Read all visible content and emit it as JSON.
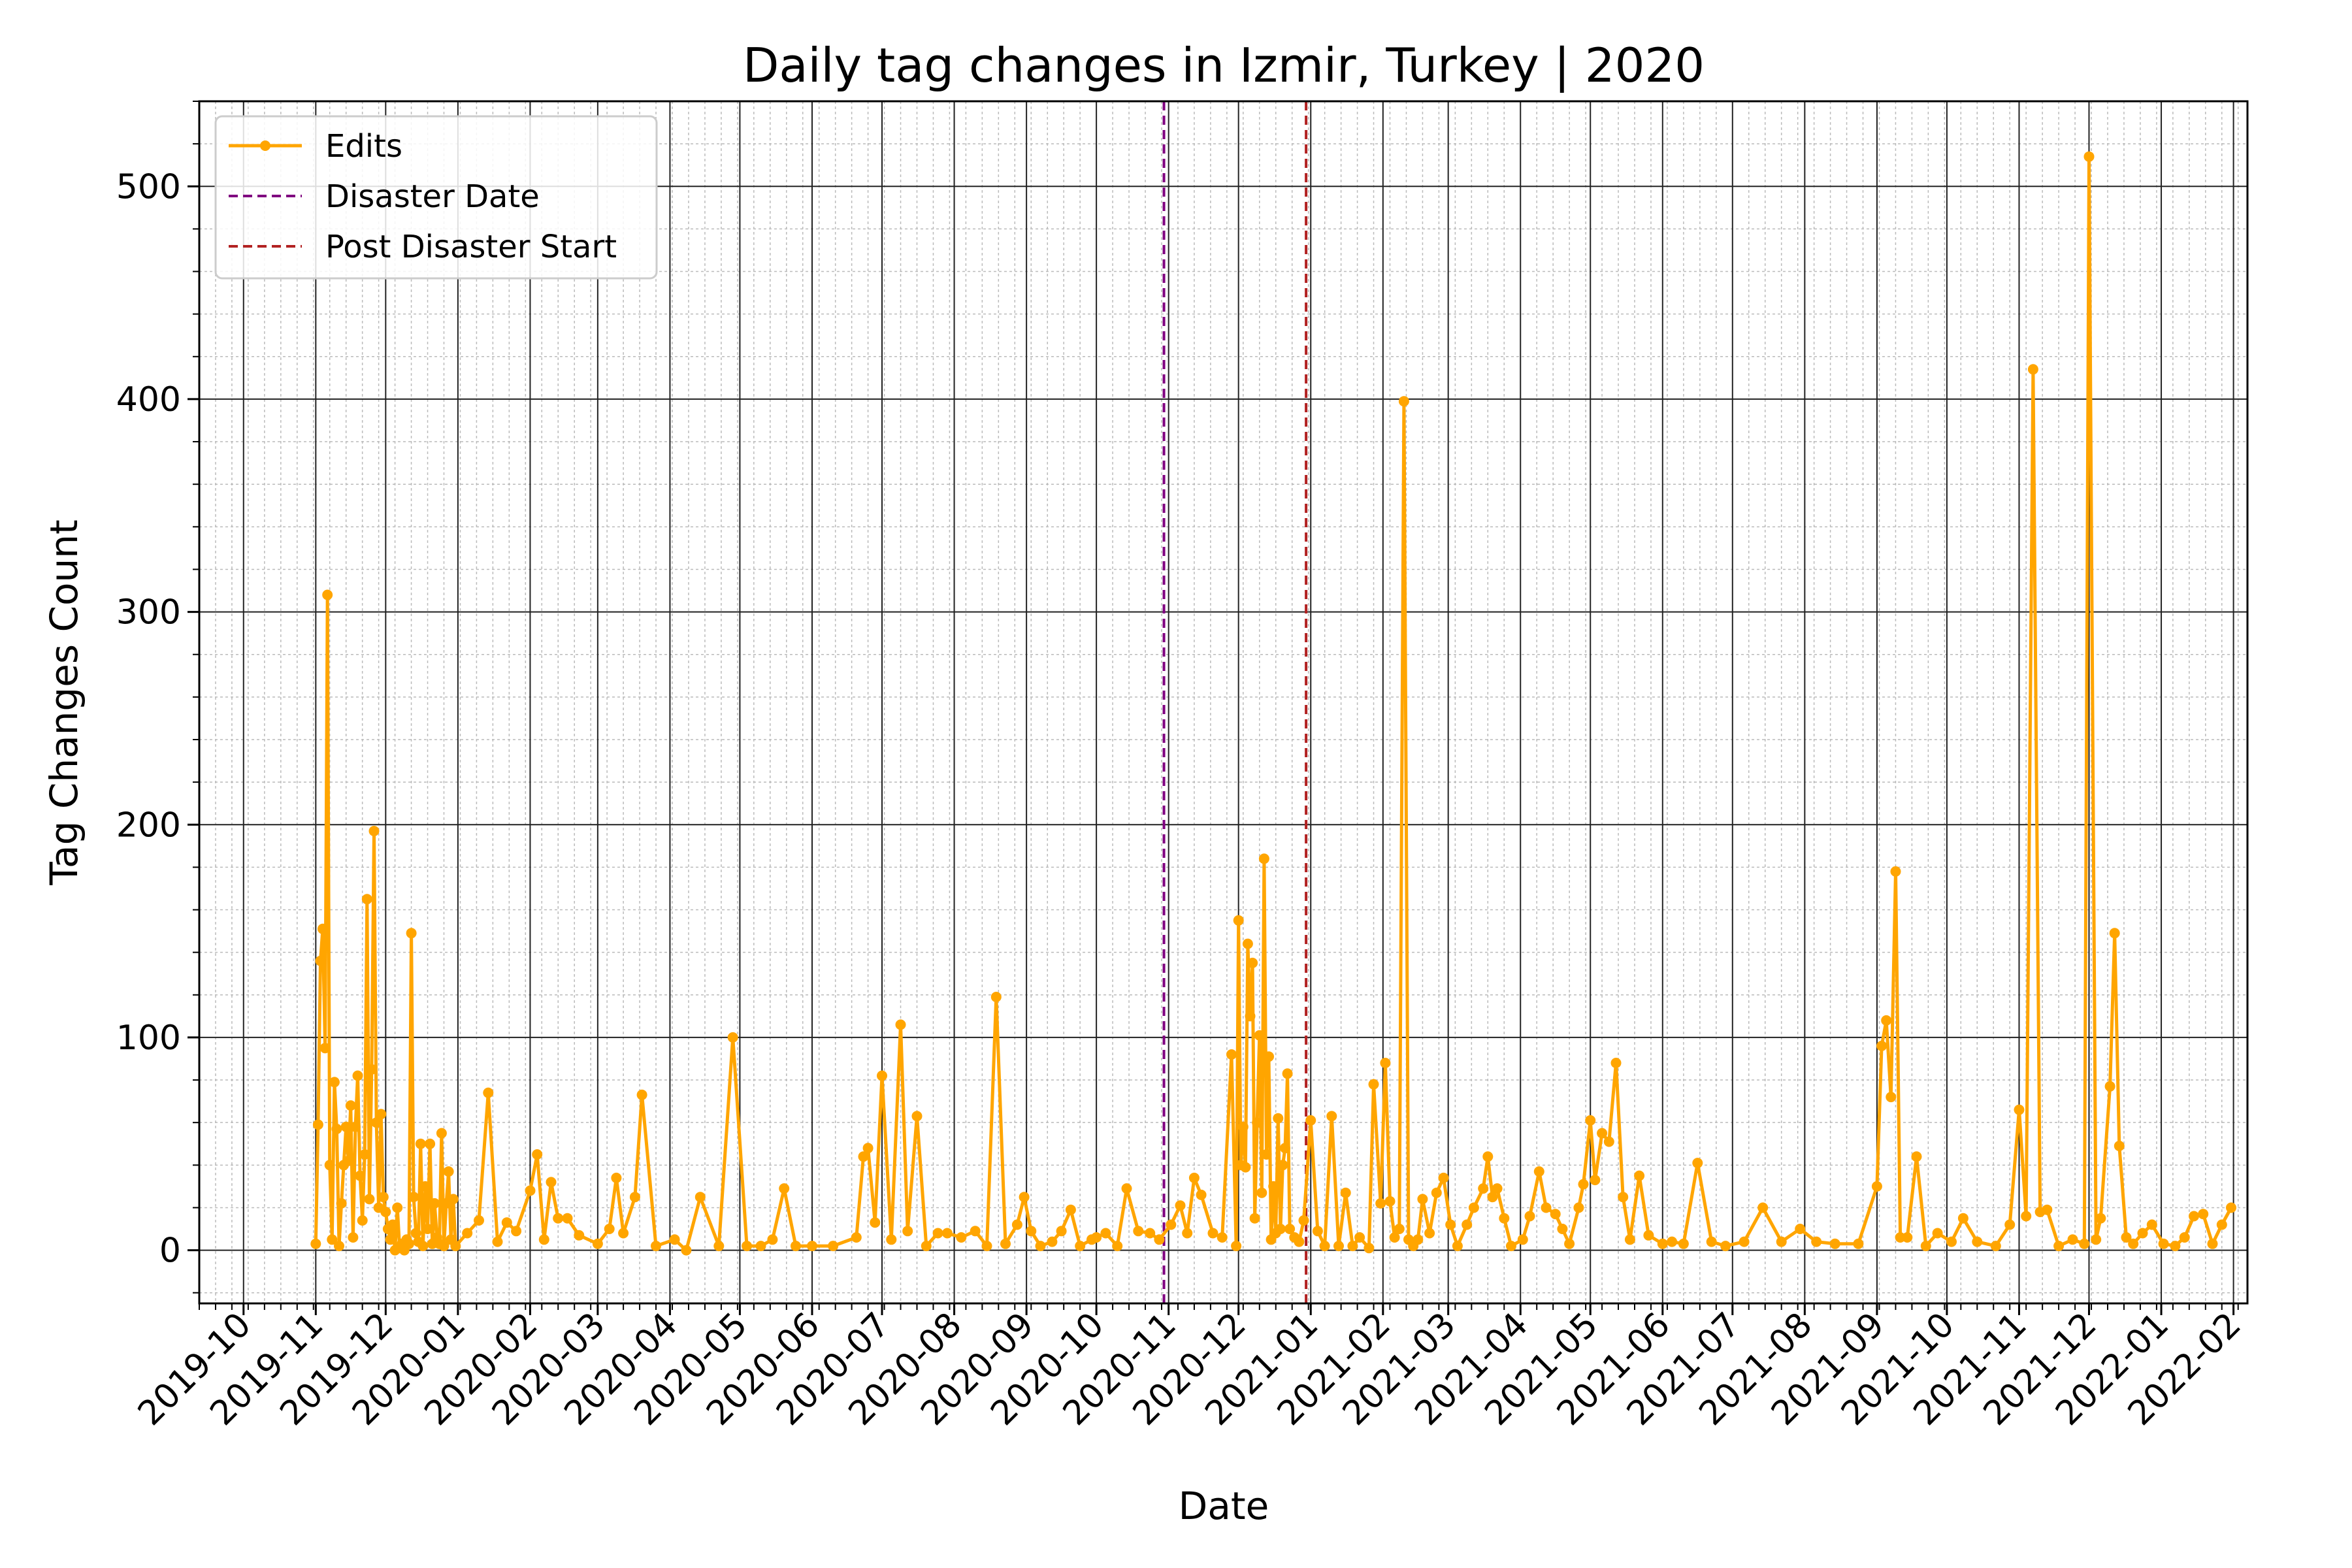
{
  "chart_data": {
    "type": "line",
    "title": "Daily tag changes in Izmir, Turkey | 2020",
    "xlabel": "Date",
    "ylabel": "Tag Changes Count",
    "xlim": [
      "2019-09-12",
      "2022-02-07"
    ],
    "ylim": [
      -25,
      540
    ],
    "y_ticks": [
      0,
      100,
      200,
      300,
      400,
      500
    ],
    "x_ticks": [
      "2019-10",
      "2019-11",
      "2019-12",
      "2020-01",
      "2020-02",
      "2020-03",
      "2020-04",
      "2020-05",
      "2020-06",
      "2020-07",
      "2020-08",
      "2020-09",
      "2020-10",
      "2020-11",
      "2020-12",
      "2021-01",
      "2021-02",
      "2021-03",
      "2021-04",
      "2021-05",
      "2021-06",
      "2021-07",
      "2021-08",
      "2021-09",
      "2021-10",
      "2021-11",
      "2021-12",
      "2022-01",
      "2022-02"
    ],
    "grid": true,
    "legend_position": "upper-left",
    "series": [
      {
        "name": "Edits",
        "color": "#FFA500",
        "marker": "circle",
        "points": [
          [
            "2019-11-01",
            3
          ],
          [
            "2019-11-02",
            59
          ],
          [
            "2019-11-03",
            136
          ],
          [
            "2019-11-04",
            151
          ],
          [
            "2019-11-05",
            95
          ],
          [
            "2019-11-06",
            308
          ],
          [
            "2019-11-07",
            40
          ],
          [
            "2019-11-08",
            5
          ],
          [
            "2019-11-09",
            79
          ],
          [
            "2019-11-10",
            57
          ],
          [
            "2019-11-11",
            2
          ],
          [
            "2019-11-12",
            22
          ],
          [
            "2019-11-13",
            40
          ],
          [
            "2019-11-14",
            58
          ],
          [
            "2019-11-15",
            42
          ],
          [
            "2019-11-16",
            68
          ],
          [
            "2019-11-17",
            6
          ],
          [
            "2019-11-18",
            58
          ],
          [
            "2019-11-19",
            82
          ],
          [
            "2019-11-20",
            35
          ],
          [
            "2019-11-21",
            14
          ],
          [
            "2019-11-22",
            45
          ],
          [
            "2019-11-23",
            165
          ],
          [
            "2019-11-24",
            24
          ],
          [
            "2019-11-25",
            85
          ],
          [
            "2019-11-26",
            197
          ],
          [
            "2019-11-27",
            60
          ],
          [
            "2019-11-28",
            20
          ],
          [
            "2019-11-29",
            64
          ],
          [
            "2019-11-30",
            25
          ],
          [
            "2019-12-01",
            18
          ],
          [
            "2019-12-02",
            10
          ],
          [
            "2019-12-03",
            5
          ],
          [
            "2019-12-04",
            12
          ],
          [
            "2019-12-05",
            0
          ],
          [
            "2019-12-06",
            20
          ],
          [
            "2019-12-07",
            1
          ],
          [
            "2019-12-08",
            3
          ],
          [
            "2019-12-09",
            0
          ],
          [
            "2019-12-10",
            5
          ],
          [
            "2019-12-11",
            3
          ],
          [
            "2019-12-12",
            149
          ],
          [
            "2019-12-13",
            25
          ],
          [
            "2019-12-14",
            8
          ],
          [
            "2019-12-15",
            4
          ],
          [
            "2019-12-16",
            50
          ],
          [
            "2019-12-17",
            2
          ],
          [
            "2019-12-18",
            30
          ],
          [
            "2019-12-19",
            10
          ],
          [
            "2019-12-20",
            50
          ],
          [
            "2019-12-21",
            3
          ],
          [
            "2019-12-22",
            22
          ],
          [
            "2019-12-23",
            6
          ],
          [
            "2019-12-24",
            3
          ],
          [
            "2019-12-25",
            55
          ],
          [
            "2019-12-26",
            2
          ],
          [
            "2019-12-27",
            22
          ],
          [
            "2019-12-28",
            37
          ],
          [
            "2019-12-29",
            5
          ],
          [
            "2019-12-30",
            24
          ],
          [
            "2019-12-31",
            2
          ],
          [
            "2020-01-05",
            8
          ],
          [
            "2020-01-10",
            14
          ],
          [
            "2020-01-14",
            74
          ],
          [
            "2020-01-18",
            4
          ],
          [
            "2020-01-22",
            13
          ],
          [
            "2020-01-26",
            9
          ],
          [
            "2020-02-01",
            28
          ],
          [
            "2020-02-04",
            45
          ],
          [
            "2020-02-07",
            5
          ],
          [
            "2020-02-10",
            32
          ],
          [
            "2020-02-13",
            15
          ],
          [
            "2020-02-17",
            15
          ],
          [
            "2020-02-22",
            7
          ],
          [
            "2020-03-01",
            3
          ],
          [
            "2020-03-06",
            10
          ],
          [
            "2020-03-09",
            34
          ],
          [
            "2020-03-12",
            8
          ],
          [
            "2020-03-17",
            25
          ],
          [
            "2020-03-20",
            73
          ],
          [
            "2020-03-26",
            2
          ],
          [
            "2020-04-03",
            5
          ],
          [
            "2020-04-08",
            0
          ],
          [
            "2020-04-14",
            25
          ],
          [
            "2020-04-22",
            2
          ],
          [
            "2020-04-28",
            100
          ],
          [
            "2020-05-04",
            2
          ],
          [
            "2020-05-10",
            2
          ],
          [
            "2020-05-15",
            5
          ],
          [
            "2020-05-20",
            29
          ],
          [
            "2020-05-25",
            2
          ],
          [
            "2020-06-01",
            2
          ],
          [
            "2020-06-10",
            2
          ],
          [
            "2020-06-20",
            6
          ],
          [
            "2020-06-23",
            44
          ],
          [
            "2020-06-25",
            48
          ],
          [
            "2020-06-28",
            13
          ],
          [
            "2020-07-01",
            82
          ],
          [
            "2020-07-05",
            5
          ],
          [
            "2020-07-09",
            106
          ],
          [
            "2020-07-12",
            9
          ],
          [
            "2020-07-16",
            63
          ],
          [
            "2020-07-20",
            2
          ],
          [
            "2020-07-25",
            8
          ],
          [
            "2020-07-29",
            8
          ],
          [
            "2020-08-04",
            6
          ],
          [
            "2020-08-10",
            9
          ],
          [
            "2020-08-15",
            2
          ],
          [
            "2020-08-19",
            119
          ],
          [
            "2020-08-23",
            3
          ],
          [
            "2020-08-28",
            12
          ],
          [
            "2020-08-31",
            25
          ],
          [
            "2020-09-03",
            9
          ],
          [
            "2020-09-07",
            2
          ],
          [
            "2020-09-12",
            4
          ],
          [
            "2020-09-16",
            9
          ],
          [
            "2020-09-20",
            19
          ],
          [
            "2020-09-24",
            2
          ],
          [
            "2020-09-29",
            5
          ],
          [
            "2020-10-01",
            6
          ],
          [
            "2020-10-05",
            8
          ],
          [
            "2020-10-10",
            2
          ],
          [
            "2020-10-14",
            29
          ],
          [
            "2020-10-19",
            9
          ],
          [
            "2020-10-24",
            8
          ],
          [
            "2020-10-28",
            5
          ],
          [
            "2020-11-02",
            12
          ],
          [
            "2020-11-06",
            21
          ],
          [
            "2020-11-09",
            8
          ],
          [
            "2020-11-12",
            34
          ],
          [
            "2020-11-15",
            26
          ],
          [
            "2020-11-20",
            8
          ],
          [
            "2020-11-24",
            6
          ],
          [
            "2020-11-28",
            92
          ],
          [
            "2020-11-30",
            2
          ],
          [
            "2020-12-01",
            155
          ],
          [
            "2020-12-02",
            40
          ],
          [
            "2020-12-03",
            58
          ],
          [
            "2020-12-04",
            39
          ],
          [
            "2020-12-05",
            144
          ],
          [
            "2020-12-06",
            110
          ],
          [
            "2020-12-07",
            135
          ],
          [
            "2020-12-08",
            15
          ],
          [
            "2020-12-09",
            60
          ],
          [
            "2020-12-10",
            101
          ],
          [
            "2020-12-11",
            27
          ],
          [
            "2020-12-12",
            184
          ],
          [
            "2020-12-13",
            45
          ],
          [
            "2020-12-14",
            91
          ],
          [
            "2020-12-15",
            5
          ],
          [
            "2020-12-16",
            30
          ],
          [
            "2020-12-17",
            8
          ],
          [
            "2020-12-18",
            62
          ],
          [
            "2020-12-19",
            10
          ],
          [
            "2020-12-20",
            40
          ],
          [
            "2020-12-21",
            48
          ],
          [
            "2020-12-22",
            83
          ],
          [
            "2020-12-23",
            10
          ],
          [
            "2020-12-25",
            6
          ],
          [
            "2020-12-27",
            4
          ],
          [
            "2020-12-29",
            14
          ],
          [
            "2021-01-01",
            61
          ],
          [
            "2021-01-04",
            9
          ],
          [
            "2021-01-07",
            2
          ],
          [
            "2021-01-10",
            63
          ],
          [
            "2021-01-13",
            2
          ],
          [
            "2021-01-16",
            27
          ],
          [
            "2021-01-19",
            2
          ],
          [
            "2021-01-22",
            6
          ],
          [
            "2021-01-26",
            1
          ],
          [
            "2021-01-28",
            78
          ],
          [
            "2021-01-31",
            22
          ],
          [
            "2021-02-02",
            88
          ],
          [
            "2021-02-04",
            23
          ],
          [
            "2021-02-06",
            6
          ],
          [
            "2021-02-08",
            10
          ],
          [
            "2021-02-10",
            399
          ],
          [
            "2021-02-12",
            5
          ],
          [
            "2021-02-14",
            2
          ],
          [
            "2021-02-16",
            5
          ],
          [
            "2021-02-18",
            24
          ],
          [
            "2021-02-21",
            8
          ],
          [
            "2021-02-24",
            27
          ],
          [
            "2021-02-27",
            34
          ],
          [
            "2021-03-02",
            12
          ],
          [
            "2021-03-05",
            2
          ],
          [
            "2021-03-09",
            12
          ],
          [
            "2021-03-12",
            20
          ],
          [
            "2021-03-16",
            29
          ],
          [
            "2021-03-18",
            44
          ],
          [
            "2021-03-20",
            25
          ],
          [
            "2021-03-22",
            29
          ],
          [
            "2021-03-25",
            15
          ],
          [
            "2021-03-28",
            2
          ],
          [
            "2021-04-02",
            5
          ],
          [
            "2021-04-05",
            16
          ],
          [
            "2021-04-09",
            37
          ],
          [
            "2021-04-12",
            20
          ],
          [
            "2021-04-16",
            17
          ],
          [
            "2021-04-19",
            10
          ],
          [
            "2021-04-22",
            3
          ],
          [
            "2021-04-26",
            20
          ],
          [
            "2021-04-28",
            31
          ],
          [
            "2021-05-01",
            61
          ],
          [
            "2021-05-03",
            33
          ],
          [
            "2021-05-06",
            55
          ],
          [
            "2021-05-09",
            51
          ],
          [
            "2021-05-12",
            88
          ],
          [
            "2021-05-15",
            25
          ],
          [
            "2021-05-18",
            5
          ],
          [
            "2021-05-22",
            35
          ],
          [
            "2021-05-26",
            7
          ],
          [
            "2021-06-01",
            3
          ],
          [
            "2021-06-05",
            4
          ],
          [
            "2021-06-10",
            3
          ],
          [
            "2021-06-16",
            41
          ],
          [
            "2021-06-22",
            4
          ],
          [
            "2021-06-28",
            2
          ],
          [
            "2021-07-06",
            4
          ],
          [
            "2021-07-14",
            20
          ],
          [
            "2021-07-22",
            4
          ],
          [
            "2021-07-30",
            10
          ],
          [
            "2021-08-06",
            4
          ],
          [
            "2021-08-14",
            3
          ],
          [
            "2021-08-24",
            3
          ],
          [
            "2021-09-01",
            30
          ],
          [
            "2021-09-03",
            96
          ],
          [
            "2021-09-05",
            108
          ],
          [
            "2021-09-07",
            72
          ],
          [
            "2021-09-09",
            178
          ],
          [
            "2021-09-11",
            6
          ],
          [
            "2021-09-14",
            6
          ],
          [
            "2021-09-18",
            44
          ],
          [
            "2021-09-22",
            2
          ],
          [
            "2021-09-27",
            8
          ],
          [
            "2021-10-03",
            4
          ],
          [
            "2021-10-08",
            15
          ],
          [
            "2021-10-14",
            4
          ],
          [
            "2021-10-22",
            2
          ],
          [
            "2021-10-28",
            12
          ],
          [
            "2021-11-01",
            66
          ],
          [
            "2021-11-04",
            16
          ],
          [
            "2021-11-07",
            414
          ],
          [
            "2021-11-10",
            18
          ],
          [
            "2021-11-13",
            19
          ],
          [
            "2021-11-18",
            2
          ],
          [
            "2021-11-24",
            5
          ],
          [
            "2021-11-29",
            3
          ],
          [
            "2021-12-01",
            514
          ],
          [
            "2021-12-04",
            5
          ],
          [
            "2021-12-06",
            15
          ],
          [
            "2021-12-10",
            77
          ],
          [
            "2021-12-12",
            149
          ],
          [
            "2021-12-14",
            49
          ],
          [
            "2021-12-17",
            6
          ],
          [
            "2021-12-20",
            3
          ],
          [
            "2021-12-24",
            8
          ],
          [
            "2021-12-28",
            12
          ],
          [
            "2022-01-02",
            3
          ],
          [
            "2022-01-07",
            2
          ],
          [
            "2022-01-11",
            6
          ],
          [
            "2022-01-15",
            16
          ],
          [
            "2022-01-19",
            17
          ],
          [
            "2022-01-23",
            3
          ],
          [
            "2022-01-27",
            12
          ],
          [
            "2022-01-31",
            20
          ]
        ]
      },
      {
        "name": "Disaster Date",
        "color": "#800080",
        "style": "dashed",
        "x": "2020-10-30"
      },
      {
        "name": "Post Disaster Start",
        "color": "#B22222",
        "style": "dashed",
        "x": "2020-12-30"
      }
    ]
  }
}
